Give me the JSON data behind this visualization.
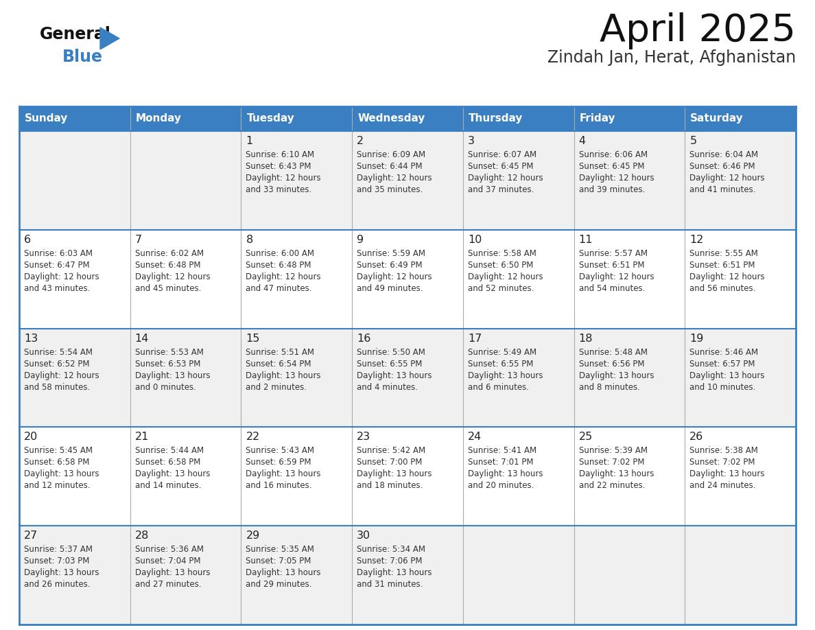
{
  "title": "April 2025",
  "subtitle": "Zindah Jan, Herat, Afghanistan",
  "header_bg": "#3a7fc1",
  "header_text_color": "#ffffff",
  "days_of_week": [
    "Sunday",
    "Monday",
    "Tuesday",
    "Wednesday",
    "Thursday",
    "Friday",
    "Saturday"
  ],
  "row_bg_odd": "#f0f0f0",
  "row_bg_even": "#ffffff",
  "cell_text_color": "#333333",
  "day_number_color": "#222222",
  "border_color": "#3a7fc1",
  "grid_color": "#aaaaaa",
  "calendar_data": [
    [
      {
        "day": null,
        "sunrise": null,
        "sunset": null,
        "daylight_line1": null,
        "daylight_line2": null
      },
      {
        "day": null,
        "sunrise": null,
        "sunset": null,
        "daylight_line1": null,
        "daylight_line2": null
      },
      {
        "day": 1,
        "sunrise": "6:10 AM",
        "sunset": "6:43 PM",
        "daylight_line1": "Daylight: 12 hours",
        "daylight_line2": "and 33 minutes."
      },
      {
        "day": 2,
        "sunrise": "6:09 AM",
        "sunset": "6:44 PM",
        "daylight_line1": "Daylight: 12 hours",
        "daylight_line2": "and 35 minutes."
      },
      {
        "day": 3,
        "sunrise": "6:07 AM",
        "sunset": "6:45 PM",
        "daylight_line1": "Daylight: 12 hours",
        "daylight_line2": "and 37 minutes."
      },
      {
        "day": 4,
        "sunrise": "6:06 AM",
        "sunset": "6:45 PM",
        "daylight_line1": "Daylight: 12 hours",
        "daylight_line2": "and 39 minutes."
      },
      {
        "day": 5,
        "sunrise": "6:04 AM",
        "sunset": "6:46 PM",
        "daylight_line1": "Daylight: 12 hours",
        "daylight_line2": "and 41 minutes."
      }
    ],
    [
      {
        "day": 6,
        "sunrise": "6:03 AM",
        "sunset": "6:47 PM",
        "daylight_line1": "Daylight: 12 hours",
        "daylight_line2": "and 43 minutes."
      },
      {
        "day": 7,
        "sunrise": "6:02 AM",
        "sunset": "6:48 PM",
        "daylight_line1": "Daylight: 12 hours",
        "daylight_line2": "and 45 minutes."
      },
      {
        "day": 8,
        "sunrise": "6:00 AM",
        "sunset": "6:48 PM",
        "daylight_line1": "Daylight: 12 hours",
        "daylight_line2": "and 47 minutes."
      },
      {
        "day": 9,
        "sunrise": "5:59 AM",
        "sunset": "6:49 PM",
        "daylight_line1": "Daylight: 12 hours",
        "daylight_line2": "and 49 minutes."
      },
      {
        "day": 10,
        "sunrise": "5:58 AM",
        "sunset": "6:50 PM",
        "daylight_line1": "Daylight: 12 hours",
        "daylight_line2": "and 52 minutes."
      },
      {
        "day": 11,
        "sunrise": "5:57 AM",
        "sunset": "6:51 PM",
        "daylight_line1": "Daylight: 12 hours",
        "daylight_line2": "and 54 minutes."
      },
      {
        "day": 12,
        "sunrise": "5:55 AM",
        "sunset": "6:51 PM",
        "daylight_line1": "Daylight: 12 hours",
        "daylight_line2": "and 56 minutes."
      }
    ],
    [
      {
        "day": 13,
        "sunrise": "5:54 AM",
        "sunset": "6:52 PM",
        "daylight_line1": "Daylight: 12 hours",
        "daylight_line2": "and 58 minutes."
      },
      {
        "day": 14,
        "sunrise": "5:53 AM",
        "sunset": "6:53 PM",
        "daylight_line1": "Daylight: 13 hours",
        "daylight_line2": "and 0 minutes."
      },
      {
        "day": 15,
        "sunrise": "5:51 AM",
        "sunset": "6:54 PM",
        "daylight_line1": "Daylight: 13 hours",
        "daylight_line2": "and 2 minutes."
      },
      {
        "day": 16,
        "sunrise": "5:50 AM",
        "sunset": "6:55 PM",
        "daylight_line1": "Daylight: 13 hours",
        "daylight_line2": "and 4 minutes."
      },
      {
        "day": 17,
        "sunrise": "5:49 AM",
        "sunset": "6:55 PM",
        "daylight_line1": "Daylight: 13 hours",
        "daylight_line2": "and 6 minutes."
      },
      {
        "day": 18,
        "sunrise": "5:48 AM",
        "sunset": "6:56 PM",
        "daylight_line1": "Daylight: 13 hours",
        "daylight_line2": "and 8 minutes."
      },
      {
        "day": 19,
        "sunrise": "5:46 AM",
        "sunset": "6:57 PM",
        "daylight_line1": "Daylight: 13 hours",
        "daylight_line2": "and 10 minutes."
      }
    ],
    [
      {
        "day": 20,
        "sunrise": "5:45 AM",
        "sunset": "6:58 PM",
        "daylight_line1": "Daylight: 13 hours",
        "daylight_line2": "and 12 minutes."
      },
      {
        "day": 21,
        "sunrise": "5:44 AM",
        "sunset": "6:58 PM",
        "daylight_line1": "Daylight: 13 hours",
        "daylight_line2": "and 14 minutes."
      },
      {
        "day": 22,
        "sunrise": "5:43 AM",
        "sunset": "6:59 PM",
        "daylight_line1": "Daylight: 13 hours",
        "daylight_line2": "and 16 minutes."
      },
      {
        "day": 23,
        "sunrise": "5:42 AM",
        "sunset": "7:00 PM",
        "daylight_line1": "Daylight: 13 hours",
        "daylight_line2": "and 18 minutes."
      },
      {
        "day": 24,
        "sunrise": "5:41 AM",
        "sunset": "7:01 PM",
        "daylight_line1": "Daylight: 13 hours",
        "daylight_line2": "and 20 minutes."
      },
      {
        "day": 25,
        "sunrise": "5:39 AM",
        "sunset": "7:02 PM",
        "daylight_line1": "Daylight: 13 hours",
        "daylight_line2": "and 22 minutes."
      },
      {
        "day": 26,
        "sunrise": "5:38 AM",
        "sunset": "7:02 PM",
        "daylight_line1": "Daylight: 13 hours",
        "daylight_line2": "and 24 minutes."
      }
    ],
    [
      {
        "day": 27,
        "sunrise": "5:37 AM",
        "sunset": "7:03 PM",
        "daylight_line1": "Daylight: 13 hours",
        "daylight_line2": "and 26 minutes."
      },
      {
        "day": 28,
        "sunrise": "5:36 AM",
        "sunset": "7:04 PM",
        "daylight_line1": "Daylight: 13 hours",
        "daylight_line2": "and 27 minutes."
      },
      {
        "day": 29,
        "sunrise": "5:35 AM",
        "sunset": "7:05 PM",
        "daylight_line1": "Daylight: 13 hours",
        "daylight_line2": "and 29 minutes."
      },
      {
        "day": 30,
        "sunrise": "5:34 AM",
        "sunset": "7:06 PM",
        "daylight_line1": "Daylight: 13 hours",
        "daylight_line2": "and 31 minutes."
      },
      {
        "day": null,
        "sunrise": null,
        "sunset": null,
        "daylight_line1": null,
        "daylight_line2": null
      },
      {
        "day": null,
        "sunrise": null,
        "sunset": null,
        "daylight_line1": null,
        "daylight_line2": null
      },
      {
        "day": null,
        "sunrise": null,
        "sunset": null,
        "daylight_line1": null,
        "daylight_line2": null
      }
    ]
  ],
  "logo_triangle_color": "#3a7fc1",
  "logo_text_color": "#111111",
  "logo_blue_color": "#3a7fc1"
}
